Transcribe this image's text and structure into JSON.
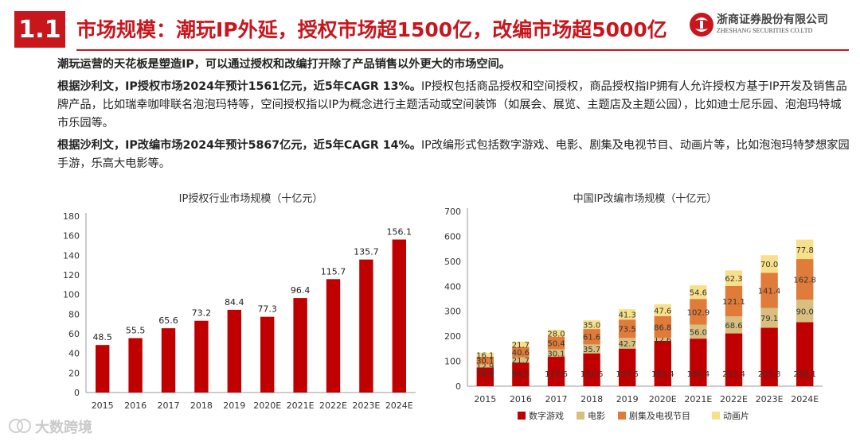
{
  "header": {
    "section_number": "1.1",
    "title": "市场规模：潮玩IP外延，授权市场超1500亿，改编市场超5000亿",
    "logo_cn": "浙商证券股份有限公司",
    "logo_en": "ZHESHANG SECURITIES CO.LTD"
  },
  "body": {
    "p1": "潮玩运营的天花板是塑造IP，可以通过授权和改编打开除了产品销售以外更大的市场空间。",
    "p2_bold": "根据沙利文，IP授权市场2024年预计1561亿元，近5年CAGR 13%。",
    "p2_rest": "IP授权包括商品授权和空间授权，商品授权指IP拥有人允许授权方基于IP开发及销售品牌产品，比如瑞幸咖啡联名泡泡玛特等，空间授权指以IP为概念进行主题活动或空间装饰（如展会、展览、主题店及主题公园），比如迪士尼乐园、泡泡玛特城市乐园等。",
    "p3_bold": "根据沙利文，IP改编市场2024年预计5867亿元，近5年CAGR 14%。",
    "p3_rest": "IP改编形式包括数字游戏、电影、剧集及电视节目、动画片等，比如泡泡玛特梦想家园手游，乐高大电影等。"
  },
  "colors": {
    "brand_red": "#c8161d",
    "bar_red": "#c00000",
    "film": "#d9bf7f",
    "drama": "#e07b39",
    "anim": "#f8e08a"
  },
  "watermark": {
    "text": "大数跨境"
  },
  "chart_data": [
    {
      "type": "bar",
      "title": "IP授权行业市场规模（十亿元）",
      "categories": [
        "2015",
        "2016",
        "2017",
        "2018",
        "2019",
        "2020E",
        "2021E",
        "2022E",
        "2023E",
        "2024E"
      ],
      "values": [
        48.5,
        55.5,
        65.6,
        73.2,
        84.4,
        77.3,
        96.4,
        115.7,
        135.7,
        156.1
      ],
      "value_labels": [
        "48.5",
        "55.5",
        "65.6",
        "73.2",
        "84.4",
        "77.3",
        "96.4",
        "115.7",
        "135.7",
        "156.1"
      ],
      "ylim": [
        0,
        180
      ],
      "yticks": [
        "0",
        "20",
        "40",
        "60",
        "80",
        "100",
        "120",
        "140",
        "160",
        "180"
      ]
    },
    {
      "type": "bar",
      "stacked": true,
      "title": "中国IP改编市场规模（十亿元）",
      "categories": [
        "2015",
        "2016",
        "2017",
        "2018",
        "2019",
        "2020E",
        "2021E",
        "2022E",
        "2023E",
        "2024E"
      ],
      "ylim": [
        0,
        700
      ],
      "yticks": [
        "0",
        "100",
        "200",
        "300",
        "400",
        "500",
        "600",
        "700"
      ],
      "legend_position": "bottom",
      "series": [
        {
          "name": "数字游戏",
          "color_key": "bar_red",
          "values": [
            74.9,
            94.5,
            117.6,
            131.6,
            150.5,
            181.4,
            190.4,
            211.4,
            233.8,
            256.1
          ],
          "labels": [
            "74.9",
            "94.5",
            "117.6",
            "131.6",
            "150.5",
            "181.4",
            "190.4",
            "211.4",
            "233.8",
            "256.1"
          ]
        },
        {
          "name": "电影",
          "color_key": "film",
          "values": [
            12.9,
            21.7,
            30.1,
            35.7,
            42.7,
            12.6,
            56.0,
            68.6,
            79.1,
            90.0
          ],
          "labels": [
            "12.9",
            "21.7",
            "30.1",
            "35.7",
            "42.7",
            "12.6",
            "56.0",
            "68.6",
            "79.1",
            "90.0"
          ]
        },
        {
          "name": "剧集及电视节目",
          "color_key": "drama",
          "values": [
            30.1,
            40.6,
            50.4,
            61.6,
            73.5,
            86.8,
            102.9,
            121.1,
            141.4,
            162.8
          ],
          "labels": [
            "30.1",
            "40.6",
            "50.4",
            "61.6",
            "73.5",
            "86.8",
            "102.9",
            "121.1",
            "141.4",
            "162.8"
          ]
        },
        {
          "name": "动画片",
          "color_key": "anim",
          "values": [
            16.1,
            21.7,
            28.0,
            35.0,
            41.3,
            47.6,
            54.6,
            62.3,
            70.0,
            77.8
          ],
          "labels": [
            "16.1",
            "21.7",
            "28.0",
            "35.0",
            "41.3",
            "47.6",
            "54.6",
            "62.3",
            "70.0",
            "77.8"
          ]
        }
      ]
    }
  ]
}
